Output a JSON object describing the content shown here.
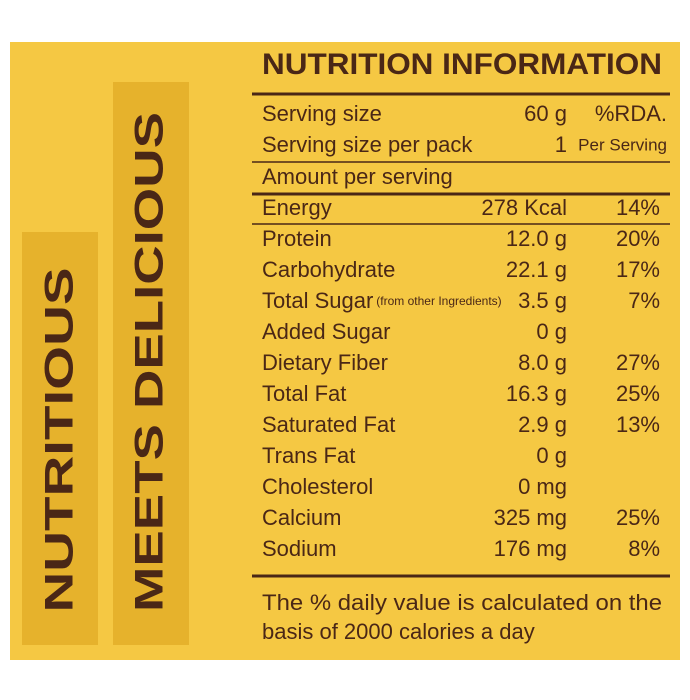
{
  "side_labels": [
    "NUTRITIOUS",
    "MEETS DELICIOUS"
  ],
  "panel": {
    "title": "NUTRITION INFORMATION",
    "serving": [
      {
        "label": "Serving size",
        "value": "60 g",
        "note": "%RDA."
      },
      {
        "label": "Serving size per pack",
        "value": "1",
        "note": "Per Serving"
      }
    ],
    "amount_heading": "Amount per serving",
    "rows": [
      {
        "name": "Energy",
        "amount": "278 Kcal",
        "rda": "14%"
      },
      {
        "name": "Protein",
        "amount": "12.0 g",
        "rda": "20%"
      },
      {
        "name": "Carbohydrate",
        "amount": "22.1 g",
        "rda": "17%"
      },
      {
        "name": "Total Sugar",
        "note": "(from other Ingredients)",
        "amount": "3.5 g",
        "rda": "7%"
      },
      {
        "name": "Added Sugar",
        "amount": "0 g"
      },
      {
        "name": "Dietary Fiber",
        "amount": "8.0 g",
        "rda": "27%"
      },
      {
        "name": "Total Fat",
        "amount": "16.3 g",
        "rda": "25%"
      },
      {
        "name": "Saturated Fat",
        "amount": "2.9 g",
        "rda": "13%"
      },
      {
        "name": "Trans Fat",
        "amount": "0 g"
      },
      {
        "name": "Cholesterol",
        "amount": "0 mg"
      },
      {
        "name": "Calcium",
        "amount": "325 mg",
        "rda": "25%"
      },
      {
        "name": "Sodium",
        "amount": "176 mg",
        "rda": "8%"
      }
    ],
    "footnote": [
      "The % daily value is calculated on the",
      "basis of 2000 calories a day"
    ]
  }
}
